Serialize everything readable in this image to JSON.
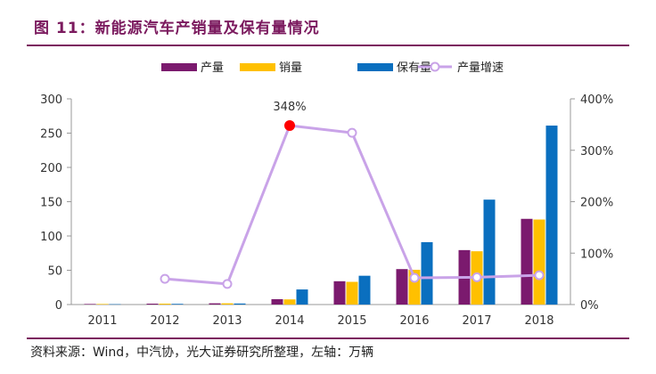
{
  "header": {
    "title": "图 11：新能源汽车产销量及保有量情况"
  },
  "footer": {
    "source": "资料来源：Wind，中汽协，光大证券研究所整理，左轴：万辆"
  },
  "colors": {
    "production": "#7b1a6e",
    "sales": "#ffc000",
    "holdings": "#0a6fbf",
    "growth_line": "#c9a3e8",
    "highlight": "#ff0000",
    "title": "#7b1a5e"
  },
  "chart_data": {
    "type": "bar",
    "categories": [
      "2011",
      "2012",
      "2013",
      "2014",
      "2015",
      "2016",
      "2017",
      "2018"
    ],
    "series": [
      {
        "name": "产量",
        "values": [
          0.8,
          1.3,
          1.8,
          7.8,
          34.0,
          51.7,
          79.4,
          125.0
        ],
        "axis": "left",
        "kind": "bar"
      },
      {
        "name": "销量",
        "values": [
          0.8,
          1.3,
          1.8,
          7.5,
          33.1,
          50.7,
          77.7,
          124.0
        ],
        "axis": "left",
        "kind": "bar"
      },
      {
        "name": "保有量",
        "values": [
          0.5,
          1.0,
          1.5,
          22.0,
          42.0,
          91.0,
          153.0,
          261.0
        ],
        "axis": "left",
        "kind": "bar"
      },
      {
        "name": "产量增速",
        "values": [
          null,
          50,
          40,
          348,
          334,
          52,
          53,
          57
        ],
        "axis": "right",
        "kind": "line",
        "unit": "%"
      }
    ],
    "left_axis": {
      "ylim": [
        0,
        300
      ],
      "ticks": [
        "0",
        "50",
        "100",
        "150",
        "200",
        "250",
        "300"
      ]
    },
    "right_axis": {
      "ylim": [
        0,
        400
      ],
      "ticks": [
        "0%",
        "100%",
        "200%",
        "300%",
        "400%"
      ]
    },
    "annotation": {
      "label": "348%",
      "category": "2014"
    },
    "legend": {
      "position": "top"
    },
    "grid": false
  }
}
